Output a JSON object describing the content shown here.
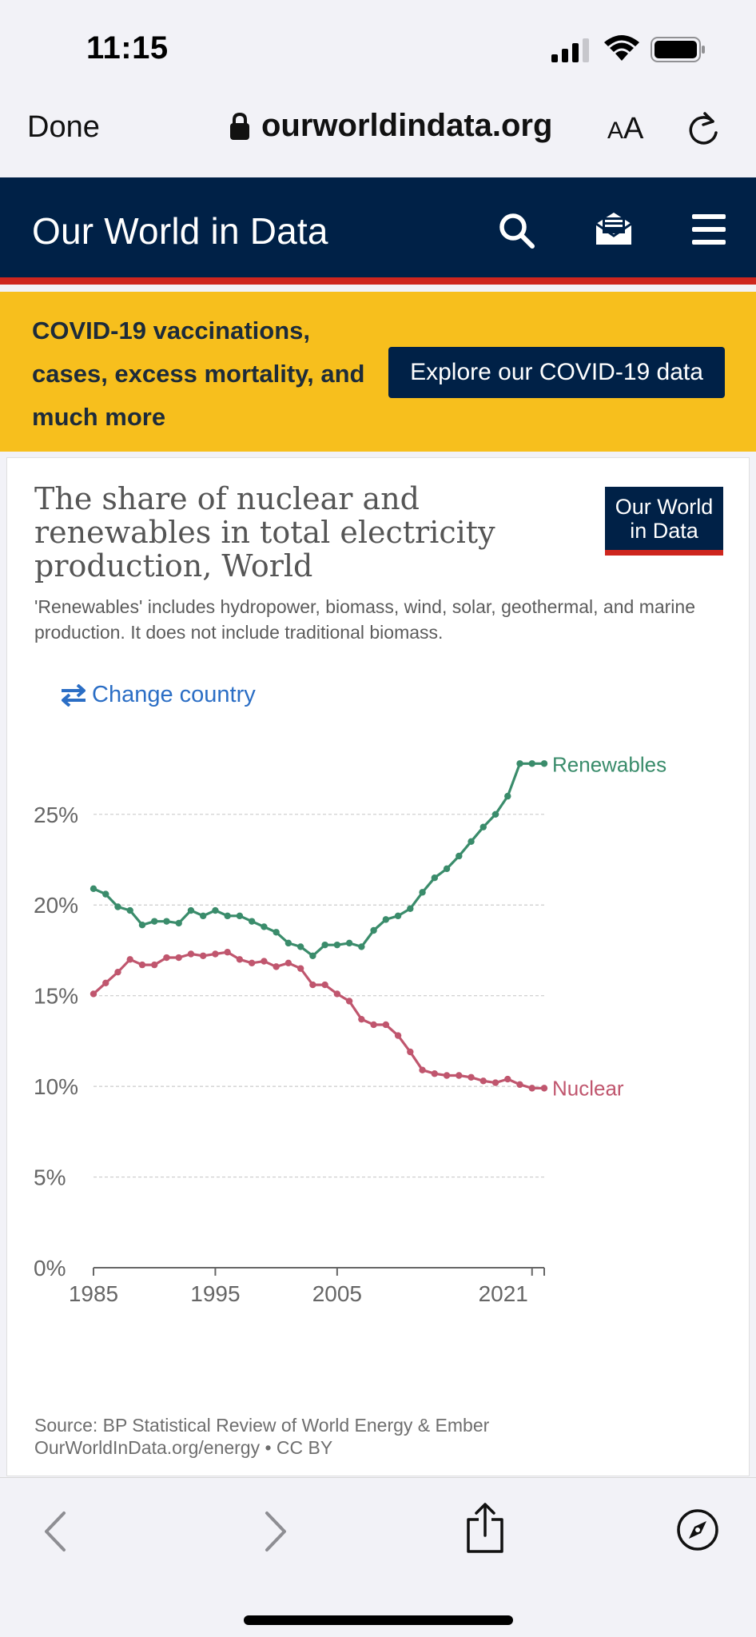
{
  "status_bar": {
    "time": "11:15"
  },
  "browser": {
    "done_label": "Done",
    "url": "ourworldindata.org",
    "text_size_label_small": "A",
    "text_size_label_large": "A"
  },
  "site": {
    "logo_text": "Our World in Data"
  },
  "banner": {
    "text": "COVID-19 vaccinations, cases, excess mortality, and much more",
    "button_label": "Explore our COVID-19 data"
  },
  "card": {
    "logo_line1": "Our World",
    "logo_line2": "in Data",
    "change_country_label": "Change country",
    "source_line1": "Source: BP Statistical Review of World Energy & Ember",
    "source_line2": "OurWorldInData.org/energy • CC BY"
  },
  "colors": {
    "renewables": "#3a8c6b",
    "nuclear": "#c0566e",
    "grid": "#cccccc",
    "axis": "#666666"
  },
  "chart_data": {
    "type": "line",
    "title": "The share of nuclear and renewables in total electricity production, World",
    "subtitle": "'Renewables' includes hydropower, biomass, wind, solar, geothermal, and marine production. It does not include traditional biomass.",
    "xlabel": "",
    "ylabel": "",
    "x_tick_labels": [
      "1985",
      "1995",
      "2005",
      "2021"
    ],
    "x_ticks": [
      1985,
      1995,
      2005,
      2021
    ],
    "y_tick_labels": [
      "0%",
      "5%",
      "10%",
      "15%",
      "20%",
      "25%"
    ],
    "y_ticks": [
      0,
      5,
      10,
      15,
      20,
      25
    ],
    "xlim": [
      1985,
      2022
    ],
    "ylim": [
      0,
      27.9
    ],
    "grid": true,
    "legend": "line-end labels",
    "x": [
      1985,
      1986,
      1987,
      1988,
      1989,
      1990,
      1991,
      1992,
      1993,
      1994,
      1995,
      1996,
      1997,
      1998,
      1999,
      2000,
      2001,
      2002,
      2003,
      2004,
      2005,
      2006,
      2007,
      2008,
      2009,
      2010,
      2011,
      2012,
      2013,
      2014,
      2015,
      2016,
      2017,
      2018,
      2019,
      2020,
      2021,
      2022
    ],
    "series": [
      {
        "name": "Renewables",
        "values": [
          20.9,
          20.6,
          19.9,
          19.7,
          18.9,
          19.1,
          19.1,
          19.0,
          19.7,
          19.4,
          19.7,
          19.4,
          19.4,
          19.1,
          18.8,
          18.5,
          17.9,
          17.7,
          17.2,
          17.8,
          17.8,
          17.9,
          17.7,
          18.6,
          19.2,
          19.4,
          19.8,
          20.7,
          21.5,
          22.0,
          22.7,
          23.5,
          24.3,
          25.0,
          26.0,
          27.8,
          27.8,
          27.8
        ],
        "color": "#3a8c6b"
      },
      {
        "name": "Nuclear",
        "values": [
          15.1,
          15.7,
          16.3,
          17.0,
          16.7,
          16.7,
          17.1,
          17.1,
          17.3,
          17.2,
          17.3,
          17.4,
          17.0,
          16.8,
          16.9,
          16.6,
          16.8,
          16.5,
          15.6,
          15.6,
          15.1,
          14.7,
          13.7,
          13.4,
          13.4,
          12.8,
          11.9,
          10.9,
          10.7,
          10.6,
          10.6,
          10.5,
          10.3,
          10.2,
          10.4,
          10.1,
          9.9,
          9.9
        ]
      }
    ]
  }
}
